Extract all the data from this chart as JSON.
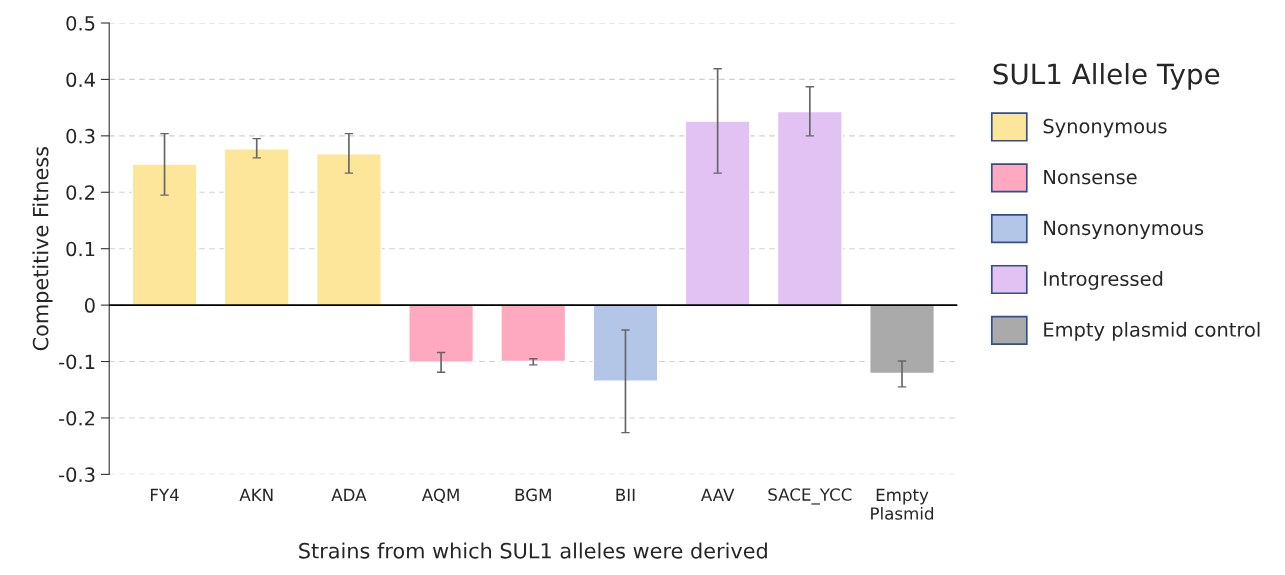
{
  "chart_data": {
    "type": "bar",
    "xlabel": "Strains from which SUL1 alleles were derived",
    "ylabel": "Competitive Fitness",
    "legend_title": "SUL1 Allele Type",
    "categories": [
      "FY4",
      "AKN",
      "ADA",
      "AQM",
      "BGM",
      "BII",
      "AAV",
      "SACE_YCC",
      "Empty\nPlasmid"
    ],
    "series": [
      {
        "name": "Synonymous",
        "color": "#fde59a",
        "values": [
          0.25,
          0.277,
          0.268,
          null,
          null,
          null,
          null,
          null,
          null
        ],
        "errors": [
          [
            0.195,
            0.304
          ],
          [
            0.261,
            0.295
          ],
          [
            0.234,
            0.304
          ],
          null,
          null,
          null,
          null,
          null,
          null
        ]
      },
      {
        "name": "Nonsense",
        "color": "#fea9c0",
        "values": [
          null,
          null,
          null,
          -0.101,
          -0.1,
          null,
          null,
          null,
          null
        ],
        "errors": [
          null,
          null,
          null,
          [
            -0.119,
            -0.084
          ],
          [
            -0.106,
            -0.095
          ],
          null,
          null,
          null,
          null
        ]
      },
      {
        "name": "Nonsynonymous",
        "color": "#b4c6e7",
        "values": [
          null,
          null,
          null,
          null,
          null,
          -0.135,
          null,
          null,
          null
        ],
        "errors": [
          null,
          null,
          null,
          null,
          null,
          [
            -0.226,
            -0.044
          ],
          null,
          null,
          null
        ]
      },
      {
        "name": "Introgressed",
        "color": "#e2c1f3",
        "values": [
          null,
          null,
          null,
          null,
          null,
          null,
          0.326,
          0.343,
          null
        ],
        "errors": [
          null,
          null,
          null,
          null,
          null,
          null,
          [
            0.234,
            0.419
          ],
          [
            0.3,
            0.387
          ],
          null
        ]
      },
      {
        "name": "Empty plasmid control",
        "color": "#aaaaaa",
        "values": [
          null,
          null,
          null,
          null,
          null,
          null,
          null,
          null,
          -0.121
        ],
        "errors": [
          null,
          null,
          null,
          null,
          null,
          null,
          null,
          null,
          [
            -0.145,
            -0.099
          ]
        ]
      }
    ],
    "ylim": [
      -0.3,
      0.5
    ],
    "yticks": [
      -0.3,
      -0.2,
      -0.1,
      0,
      0.1,
      0.2,
      0.3,
      0.4,
      0.5
    ],
    "grid": "y",
    "legend": "right"
  }
}
